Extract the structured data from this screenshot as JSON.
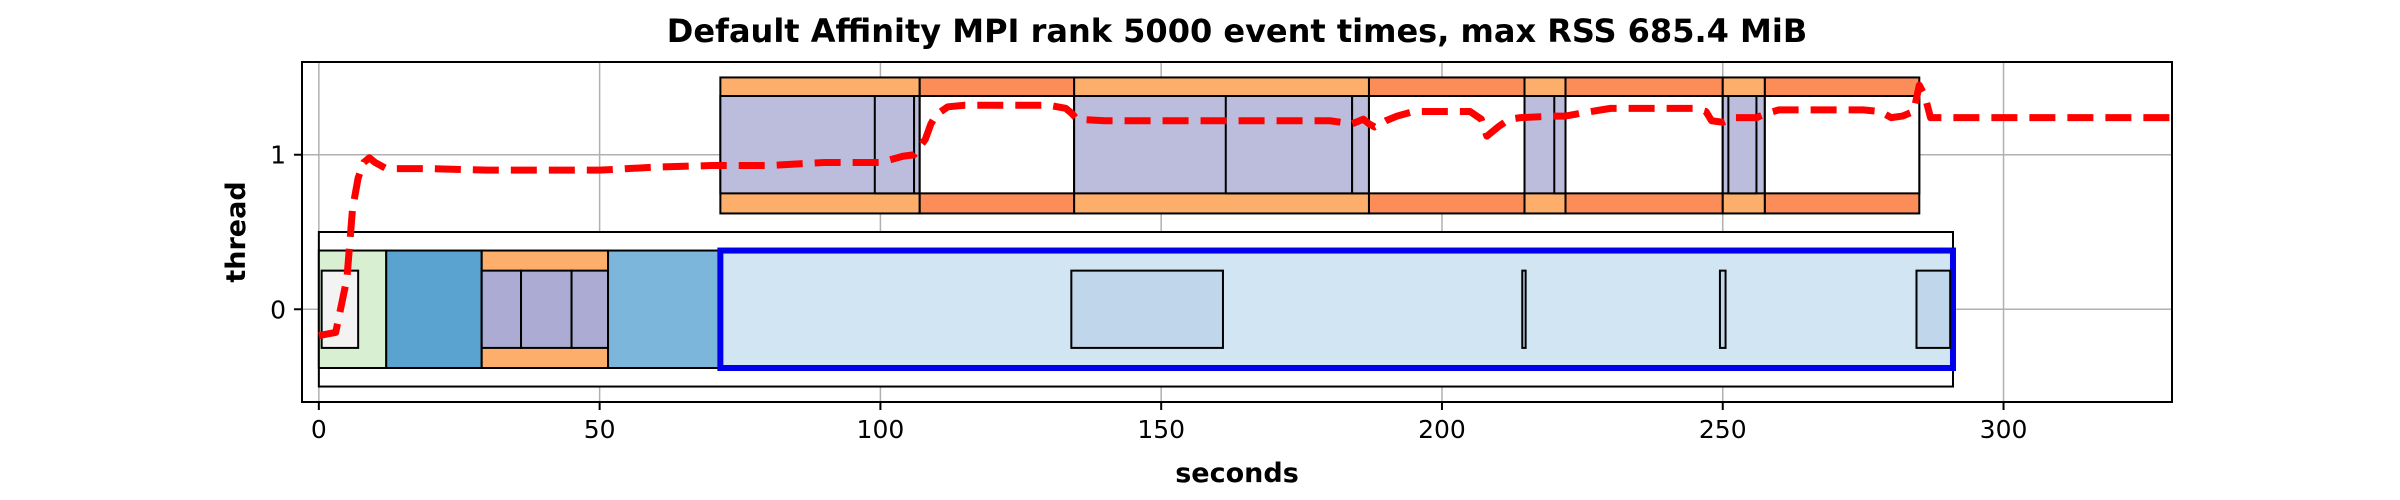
{
  "chart_data": {
    "type": "timeline",
    "title": "Default Affinity MPI rank 5000 event times, max RSS 685.4 MiB",
    "xlabel": "seconds",
    "ylabel": "thread",
    "xlim": [
      -3,
      330
    ],
    "ylim": [
      -0.6,
      1.6
    ],
    "xticks": [
      0,
      50,
      100,
      150,
      200,
      250,
      300
    ],
    "yticks": [
      0,
      1
    ],
    "grid": true,
    "colors": {
      "outline": "#000000",
      "grid": "#b0b0b0",
      "rss_line": "#ff0000",
      "highlight_border": "#0000ee",
      "orange_light": "#fdae6b",
      "orange_red": "#fc8d59",
      "lavender": "#bcbddc",
      "purple_mid": "#ababd3",
      "blue_mid": "#5aa2cf",
      "blue_light": "#7cb6da",
      "blue_pale": "#d2e5f3",
      "blue_pale2": "#c0d7eb",
      "green_pale": "#d8efd2",
      "grey_pale": "#f3f3f3"
    },
    "events": [
      {
        "thread": 0,
        "start": 0,
        "end": 291,
        "bottom": -0.5,
        "top": 0.5,
        "fill": "#ffffff",
        "border": "outline",
        "width": 2
      },
      {
        "thread": 0,
        "start": 0,
        "end": 12,
        "bottom": -0.38,
        "top": 0.38,
        "fill": "#d8efd2",
        "border": "outline",
        "width": 2
      },
      {
        "thread": 0,
        "start": 0.5,
        "end": 7,
        "bottom": -0.25,
        "top": 0.25,
        "fill": "#f3f3f3",
        "border": "outline",
        "width": 2
      },
      {
        "thread": 0,
        "start": 12,
        "end": 29,
        "bottom": -0.38,
        "top": 0.38,
        "fill": "#5aa2cf",
        "border": "outline",
        "width": 2
      },
      {
        "thread": 0,
        "start": 29,
        "end": 51.5,
        "bottom": -0.38,
        "top": 0.38,
        "fill": "#fdae6b",
        "border": "outline",
        "width": 2
      },
      {
        "thread": 0,
        "start": 29,
        "end": 36,
        "bottom": -0.25,
        "top": 0.25,
        "fill": "#ababd3",
        "border": "outline",
        "width": 2
      },
      {
        "thread": 0,
        "start": 36,
        "end": 45,
        "bottom": -0.25,
        "top": 0.25,
        "fill": "#ababd3",
        "border": "outline",
        "width": 2
      },
      {
        "thread": 0,
        "start": 45,
        "end": 51.5,
        "bottom": -0.25,
        "top": 0.25,
        "fill": "#ababd3",
        "border": "outline",
        "width": 2
      },
      {
        "thread": 0,
        "start": 51.5,
        "end": 71.5,
        "bottom": -0.38,
        "top": 0.38,
        "fill": "#7cb6da",
        "border": "outline",
        "width": 2
      },
      {
        "thread": 0,
        "start": 71.5,
        "end": 291,
        "bottom": -0.38,
        "top": 0.38,
        "fill": "#d2e5f3",
        "border": "highlight_border",
        "width": 6
      },
      {
        "thread": 0,
        "start": 134,
        "end": 161,
        "bottom": -0.25,
        "top": 0.25,
        "fill": "#c0d7eb",
        "border": "outline",
        "width": 2
      },
      {
        "thread": 0,
        "start": 214.3,
        "end": 214.9,
        "bottom": -0.25,
        "top": 0.25,
        "fill": "#c0d7eb",
        "border": "outline",
        "width": 2
      },
      {
        "thread": 0,
        "start": 249.5,
        "end": 250.5,
        "bottom": -0.25,
        "top": 0.25,
        "fill": "#c0d7eb",
        "border": "outline",
        "width": 2
      },
      {
        "thread": 0,
        "start": 284.5,
        "end": 290.5,
        "bottom": -0.25,
        "top": 0.25,
        "fill": "#c0d7eb",
        "border": "outline",
        "width": 2
      },
      {
        "thread": 1,
        "start": 71.5,
        "end": 107,
        "bottom": 0.62,
        "top": 1.5,
        "fill": "#fdae6b",
        "border": "outline",
        "width": 2
      },
      {
        "thread": 1,
        "start": 71.5,
        "end": 107,
        "bottom": 0.75,
        "top": 1.38,
        "fill": "#bcbddc",
        "border": "outline",
        "width": 2
      },
      {
        "thread": 1,
        "start": 99,
        "end": 106,
        "bottom": 0.75,
        "top": 1.38,
        "fill": "#bcbddc",
        "border": "outline",
        "width": 2
      },
      {
        "thread": 1,
        "start": 106,
        "end": 107,
        "bottom": 0.75,
        "top": 1.38,
        "fill": "#bcbddc",
        "border": "outline",
        "width": 2
      },
      {
        "thread": 1,
        "start": 107,
        "end": 134.5,
        "bottom": 0.62,
        "top": 1.5,
        "fill": "#fc8d59",
        "border": "outline",
        "width": 2
      },
      {
        "thread": 1,
        "start": 107,
        "end": 134.5,
        "bottom": 0.75,
        "top": 1.38,
        "fill": "#ffffff",
        "border": "outline",
        "width": 2
      },
      {
        "thread": 1,
        "start": 134.5,
        "end": 187,
        "bottom": 0.62,
        "top": 1.5,
        "fill": "#fdae6b",
        "border": "outline",
        "width": 2
      },
      {
        "thread": 1,
        "start": 134.5,
        "end": 187,
        "bottom": 0.75,
        "top": 1.38,
        "fill": "#bcbddc",
        "border": "outline",
        "width": 2
      },
      {
        "thread": 1,
        "start": 161.5,
        "end": 184,
        "bottom": 0.75,
        "top": 1.38,
        "fill": "#bcbddc",
        "border": "outline",
        "width": 2
      },
      {
        "thread": 1,
        "start": 184,
        "end": 187,
        "bottom": 0.75,
        "top": 1.38,
        "fill": "#bcbddc",
        "border": "outline",
        "width": 2
      },
      {
        "thread": 1,
        "start": 187,
        "end": 214.7,
        "bottom": 0.62,
        "top": 1.5,
        "fill": "#fc8d59",
        "border": "outline",
        "width": 2
      },
      {
        "thread": 1,
        "start": 187,
        "end": 214.7,
        "bottom": 0.75,
        "top": 1.38,
        "fill": "#ffffff",
        "border": "outline",
        "width": 2
      },
      {
        "thread": 1,
        "start": 214.7,
        "end": 222,
        "bottom": 0.62,
        "top": 1.5,
        "fill": "#fdae6b",
        "border": "outline",
        "width": 2
      },
      {
        "thread": 1,
        "start": 214.7,
        "end": 222,
        "bottom": 0.75,
        "top": 1.38,
        "fill": "#bcbddc",
        "border": "outline",
        "width": 2
      },
      {
        "thread": 1,
        "start": 220,
        "end": 222,
        "bottom": 0.75,
        "top": 1.38,
        "fill": "#bcbddc",
        "border": "outline",
        "width": 2
      },
      {
        "thread": 1,
        "start": 222,
        "end": 250,
        "bottom": 0.62,
        "top": 1.5,
        "fill": "#fc8d59",
        "border": "outline",
        "width": 2
      },
      {
        "thread": 1,
        "start": 222,
        "end": 250,
        "bottom": 0.75,
        "top": 1.38,
        "fill": "#ffffff",
        "border": "outline",
        "width": 2
      },
      {
        "thread": 1,
        "start": 250,
        "end": 257.5,
        "bottom": 0.62,
        "top": 1.5,
        "fill": "#fdae6b",
        "border": "outline",
        "width": 2
      },
      {
        "thread": 1,
        "start": 250,
        "end": 257.5,
        "bottom": 0.75,
        "top": 1.38,
        "fill": "#bcbddc",
        "border": "outline",
        "width": 2
      },
      {
        "thread": 1,
        "start": 251,
        "end": 256,
        "bottom": 0.75,
        "top": 1.38,
        "fill": "#bcbddc",
        "border": "outline",
        "width": 2
      },
      {
        "thread": 1,
        "start": 257.5,
        "end": 285,
        "bottom": 0.62,
        "top": 1.5,
        "fill": "#fc8d59",
        "border": "outline",
        "width": 2
      },
      {
        "thread": 1,
        "start": 257.5,
        "end": 285,
        "bottom": 0.75,
        "top": 1.38,
        "fill": "#ffffff",
        "border": "outline",
        "width": 2
      }
    ],
    "rss_line": {
      "style": "dashed",
      "x": [
        0,
        3,
        5,
        6,
        7,
        8,
        9,
        10,
        12,
        20,
        30,
        40,
        50,
        60,
        70,
        80,
        90,
        96,
        100,
        102,
        104,
        106,
        107,
        108,
        109,
        110,
        112,
        115,
        120,
        125,
        130,
        133,
        134,
        135,
        140,
        150,
        160,
        170,
        180,
        184,
        186,
        187,
        188,
        190,
        192,
        195,
        200,
        205,
        207,
        208,
        210,
        212,
        214,
        220,
        222,
        225,
        230,
        240,
        245,
        247,
        248,
        250,
        252,
        254,
        256,
        258,
        260,
        270,
        275,
        278,
        280,
        282,
        284,
        285,
        286,
        287,
        290,
        300,
        310,
        320,
        330
      ],
      "y": [
        -0.17,
        -0.15,
        0.2,
        0.65,
        0.85,
        0.95,
        0.98,
        0.95,
        0.91,
        0.91,
        0.9,
        0.9,
        0.9,
        0.92,
        0.93,
        0.93,
        0.95,
        0.95,
        0.95,
        0.97,
        0.99,
        1.0,
        1.05,
        1.1,
        1.2,
        1.26,
        1.31,
        1.32,
        1.32,
        1.32,
        1.32,
        1.3,
        1.27,
        1.23,
        1.22,
        1.22,
        1.22,
        1.22,
        1.22,
        1.2,
        1.23,
        1.2,
        1.18,
        1.22,
        1.25,
        1.28,
        1.28,
        1.28,
        1.23,
        1.12,
        1.18,
        1.23,
        1.24,
        1.25,
        1.25,
        1.27,
        1.3,
        1.3,
        1.3,
        1.28,
        1.22,
        1.21,
        1.24,
        1.24,
        1.24,
        1.27,
        1.29,
        1.29,
        1.29,
        1.28,
        1.24,
        1.25,
        1.28,
        1.45,
        1.38,
        1.24,
        1.24,
        1.24,
        1.24,
        1.24,
        1.24
      ]
    }
  }
}
